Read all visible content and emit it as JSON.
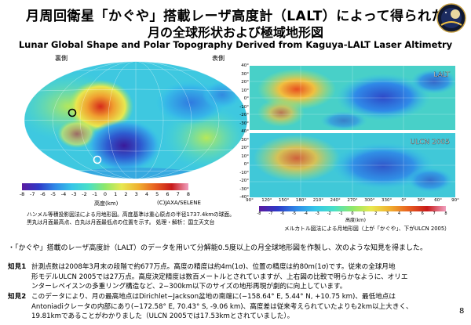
{
  "title": {
    "line1": "月周回衛星「かぐや」搭載レーザ高度計（LALT）によって得られた",
    "line2": "月の全球形状および極域地形図",
    "line3": "Lunar Global Shape and Polar Topography Derived from Kaguya-LALT Laser Altimetry"
  },
  "figure_left": {
    "far_side_label": "裏側",
    "near_side_label": "表側",
    "colorbar_ticks": [
      "-8",
      "-7",
      "-6",
      "-5",
      "-4",
      "-3",
      "-2",
      "-1",
      "0",
      "1",
      "2",
      "3",
      "4",
      "5",
      "6",
      "7",
      "8"
    ],
    "colorbar_unit": "高度(km)",
    "copyright": "(C)JAXA/SELENE",
    "caption_line1": "ハンメル等積投影図法による月地形図。高度基準は重心原点の半径1737.4kmの球面。",
    "caption_line2": "黒丸は月面最高点、白丸は月面最低点の位置を示す。 処理・解析：国立天文台"
  },
  "figure_right": {
    "panel_top_label": "LALT",
    "panel_bottom_label": "ULCN 2005",
    "lat_ticks": [
      "40°",
      "30°",
      "20°",
      "10°",
      "0°",
      "-10°",
      "-20°",
      "-30°",
      "40°",
      "30°",
      "20°",
      "10°",
      "0°",
      "-10°",
      "-20°",
      "-30°",
      "-40°"
    ],
    "lon_ticks": [
      "90°",
      "120°",
      "150°",
      "180°",
      "210°",
      "240°",
      "270°",
      "300°",
      "330°",
      "0°",
      "30°",
      "60°",
      "90°"
    ],
    "colorbar_ticks": [
      "-8",
      "-7",
      "-6",
      "-5",
      "-4",
      "-3",
      "-2",
      "-1",
      "0",
      "1",
      "2",
      "3",
      "4",
      "5",
      "6",
      "7",
      "8"
    ],
    "colorbar_unit": "高度(km)",
    "caption": "メルカトル図法による月地形図（上が「かぐや」、下がULCN 2005）"
  },
  "body": {
    "intro": "・「かぐや」搭載のレーザ高度計（LALT）のデータを用いて分解能0.5度以上の月全球地形図を作製し、次のような知見を得ました。",
    "finding1_head": "知見1",
    "finding1_line1": "計測点数は2008年3月末の段階で約677万点。高度の精度は約4m(1σ)、位置の精度は約80m(1σ)です。従来の全球月地",
    "finding1_line2": "形モデルULCN 2005では27万点。高度決定精度は数百メートルとされていますが、上右図の比較で明らかなように、オリエ",
    "finding1_line3": "ンターレベイスンの多重リング構造など、2−300km以下のサイズの地形再現が劇的に向上しています。",
    "finding2_head": "知見2",
    "finding2_line1": "このデータにより、月の最高地点はDirichlet−Jackson盆地の南端に(−158.64° E, 5.44° N, +10.75 km)、最低地点は",
    "finding2_line2": "Antoniadiクレータの内部にあり(−172.58° E, 70.43° S, -9.06 km)、高度差は従来考えられていたよりも2km以上大きく、",
    "finding2_line3": "19.81kmであることがわかりました（ULCN 2005では17.53kmとされていました）。"
  },
  "page_number": "8",
  "colors": {
    "low": "#2a1a8f",
    "mid": "#36c6e8",
    "high": "#d62a1a",
    "colorbar": [
      "#5a1aa0",
      "#2e3ac8",
      "#2f8ae8",
      "#36c6e8",
      "#48e0c8",
      "#8fe86a",
      "#e8e850",
      "#f0b030",
      "#e86020",
      "#c81a1a",
      "#f0a0c0"
    ]
  }
}
